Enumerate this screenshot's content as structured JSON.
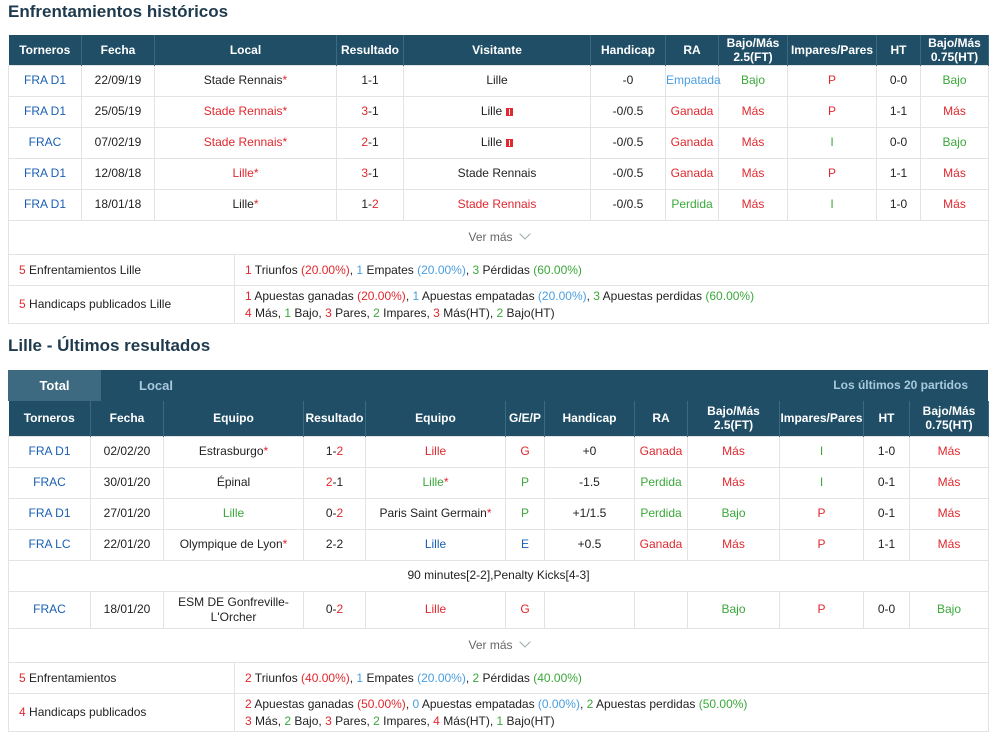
{
  "h2h": {
    "title": "Enfrentamientos históricos",
    "headers": [
      "Torneros",
      "Fecha",
      "Local",
      "Resultado",
      "Visitante",
      "Handicap",
      "RA",
      "Bajo/Más 2.5(FT)",
      "Impares/Pares",
      "HT",
      "Bajo/Más 0.75(HT)"
    ],
    "rows": [
      {
        "t": "FRA D1",
        "d": "22/09/19",
        "home": "Stade Rennais",
        "ha": "*",
        "hc": "",
        "r1": "1",
        "r2": "1",
        "rc1": "",
        "rc2": "",
        "away": "Lille",
        "aa": "",
        "ac": "",
        "flag": false,
        "hcp": "-0",
        "ra": "Empatada",
        "rac": "lblue",
        "ou": "Bajo",
        "ouc": "green",
        "oe": "P",
        "oec": "red",
        "ht": "0-0",
        "ou2": "Bajo",
        "ou2c": "green"
      },
      {
        "t": "FRA D1",
        "d": "25/05/19",
        "home": "Stade Rennais",
        "ha": "*",
        "hc": "red",
        "r1": "3",
        "r2": "1",
        "rc1": "red",
        "rc2": "",
        "away": "Lille",
        "aa": "",
        "ac": "",
        "flag": true,
        "hcp": "-0/0.5",
        "ra": "Ganada",
        "rac": "red",
        "ou": "Más",
        "ouc": "red",
        "oe": "P",
        "oec": "red",
        "ht": "1-1",
        "ou2": "Más",
        "ou2c": "red"
      },
      {
        "t": "FRAC",
        "d": "07/02/19",
        "home": "Stade Rennais",
        "ha": "*",
        "hc": "red",
        "r1": "2",
        "r2": "1",
        "rc1": "red",
        "rc2": "",
        "away": "Lille",
        "aa": "",
        "ac": "",
        "flag": true,
        "hcp": "-0/0.5",
        "ra": "Ganada",
        "rac": "red",
        "ou": "Más",
        "ouc": "red",
        "oe": "I",
        "oec": "green",
        "ht": "0-0",
        "ou2": "Bajo",
        "ou2c": "green"
      },
      {
        "t": "FRA D1",
        "d": "12/08/18",
        "home": "Lille",
        "ha": "*",
        "hc": "red",
        "r1": "3",
        "r2": "1",
        "rc1": "red",
        "rc2": "",
        "away": "Stade Rennais",
        "aa": "",
        "ac": "",
        "flag": false,
        "hcp": "-0/0.5",
        "ra": "Ganada",
        "rac": "red",
        "ou": "Más",
        "ouc": "red",
        "oe": "P",
        "oec": "red",
        "ht": "1-1",
        "ou2": "Más",
        "ou2c": "red"
      },
      {
        "t": "FRA D1",
        "d": "18/01/18",
        "home": "Lille",
        "ha": "*",
        "hc": "",
        "r1": "1",
        "r2": "2",
        "rc1": "",
        "rc2": "red",
        "away": "Stade Rennais",
        "aa": "",
        "ac": "red",
        "flag": false,
        "hcp": "-0/0.5",
        "ra": "Perdida",
        "rac": "green",
        "ou": "Más",
        "ouc": "red",
        "oe": "I",
        "oec": "green",
        "ht": "1-0",
        "ou2": "Más",
        "ou2c": "red"
      }
    ],
    "more": "Ver más",
    "summary1": {
      "count": "5",
      "label": " Enfrentamientos Lille",
      "w": "1",
      "wl": " Triunfos ",
      "wp": "(20.00%)",
      "dr": "1",
      "dl": " Empates ",
      "dp": "(20.00%)",
      "l": "3",
      "ll": " Pérdidas ",
      "lp": "(60.00%)"
    },
    "summary2": {
      "count": "5",
      "label": " Handicaps publicados Lille",
      "w": "1",
      "wl": " Apuestas ganadas ",
      "wp": "(20.00%)",
      "dr": "1",
      "dl": " Apuestas empatadas ",
      "dp": "(20.00%)",
      "l": "3",
      "ll": " Apuestas perdidas ",
      "lp": "(60.00%)",
      "line2": {
        "a": "4",
        "al": " Más, ",
        "b": "1",
        "bl": " Bajo, ",
        "c": "3",
        "cl": " Pares, ",
        "d": "2",
        "dl": " Impares, ",
        "e": "3",
        "el": " Más(HT), ",
        "f": "2",
        "fl": " Bajo(HT)"
      }
    }
  },
  "recent": {
    "title": "Lille - Últimos resultados",
    "tab_total": "Total",
    "tab_local": "Local",
    "last_n": "Los últimos 20 partidos",
    "headers": [
      "Torneros",
      "Fecha",
      "Equipo",
      "Resultado",
      "Equipo",
      "G/E/P",
      "Handicap",
      "RA",
      "Bajo/Más 2.5(FT)",
      "Impares/Pares",
      "HT",
      "Bajo/Más 0.75(HT)"
    ],
    "rows": [
      {
        "t": "FRA D1",
        "d": "02/02/20",
        "home": "Estrasburgo",
        "ha": "*",
        "hc": "",
        "r1": "1",
        "r2": "2",
        "rc1": "",
        "rc2": "red",
        "away": "Lille",
        "aa": "",
        "ac": "red",
        "g": "G",
        "gc": "red",
        "hcp": "+0",
        "ra": "Ganada",
        "rac": "red",
        "ou": "Más",
        "ouc": "red",
        "oe": "I",
        "oec": "green",
        "ht": "1-0",
        "ou2": "Más",
        "ou2c": "red"
      },
      {
        "t": "FRAC",
        "d": "30/01/20",
        "home": "Épinal",
        "ha": "",
        "hc": "",
        "r1": "2",
        "r2": "1",
        "rc1": "red",
        "rc2": "",
        "away": "Lille",
        "aa": "*",
        "ac": "green",
        "g": "P",
        "gc": "green",
        "hcp": "-1.5",
        "ra": "Perdida",
        "rac": "green",
        "ou": "Más",
        "ouc": "red",
        "oe": "I",
        "oec": "green",
        "ht": "0-1",
        "ou2": "Más",
        "ou2c": "red"
      },
      {
        "t": "FRA D1",
        "d": "27/01/20",
        "home": "Lille",
        "ha": "",
        "hc": "green",
        "r1": "0",
        "r2": "2",
        "rc1": "",
        "rc2": "red",
        "away": "Paris Saint Germain",
        "aa": "*",
        "ac": "",
        "g": "P",
        "gc": "green",
        "hcp": "+1/1.5",
        "ra": "Perdida",
        "rac": "green",
        "ou": "Bajo",
        "ouc": "green",
        "oe": "P",
        "oec": "red",
        "ht": "0-1",
        "ou2": "Más",
        "ou2c": "red"
      },
      {
        "t": "FRA LC",
        "d": "22/01/20",
        "home": "Olympique de Lyon",
        "ha": "*",
        "hc": "",
        "r1": "2",
        "r2": "2",
        "rc1": "",
        "rc2": "",
        "away": "Lille",
        "aa": "",
        "ac": "blue",
        "g": "E",
        "gc": "blue",
        "hcp": "+0.5",
        "ra": "Ganada",
        "rac": "red",
        "ou": "Más",
        "ouc": "red",
        "oe": "P",
        "oec": "red",
        "ht": "1-1",
        "ou2": "Más",
        "ou2c": "red"
      }
    ],
    "note": "90 minutes[2-2],Penalty Kicks[4-3]",
    "last_row": {
      "t": "FRAC",
      "d": "18/01/20",
      "home1": "ESM DE Gonfreville-",
      "home2": "L'Orcher",
      "r1": "0",
      "r2": "2",
      "away": "Lille",
      "g": "G",
      "hcp": "",
      "ra": "",
      "ou": "Bajo",
      "oe": "P",
      "ht": "0-0",
      "ou2": "Bajo"
    },
    "more": "Ver más",
    "summary1": {
      "count": "5",
      "label": " Enfrentamientos",
      "w": "2",
      "wl": " Triunfos ",
      "wp": "(40.00%)",
      "dr": "1",
      "dl": " Empates ",
      "dp": "(20.00%)",
      "l": "2",
      "ll": " Pérdidas ",
      "lp": "(40.00%)"
    },
    "summary2": {
      "count": "4",
      "label": " Handicaps publicados",
      "w": "2",
      "wl": " Apuestas ganadas ",
      "wp": "(50.00%)",
      "dr": "0",
      "dl": " Apuestas empatadas ",
      "dp": "(0.00%)",
      "l": "2",
      "ll": " Apuestas perdidas ",
      "lp": "(50.00%)",
      "line2": {
        "a": "3",
        "al": " Más, ",
        "b": "2",
        "bl": " Bajo, ",
        "c": "3",
        "cl": " Pares, ",
        "d": "2",
        "dl": " Impares, ",
        "e": "4",
        "el": " Más(HT), ",
        "f": "1",
        "fl": " Bajo(HT)"
      }
    }
  },
  "colors": {
    "header_bg": "#1f4e66",
    "tab_active": "#3d6a80",
    "red": "#e0282e",
    "green": "#3aa83a",
    "blue": "#1a5fb4",
    "light_blue": "#4a9ee0"
  }
}
